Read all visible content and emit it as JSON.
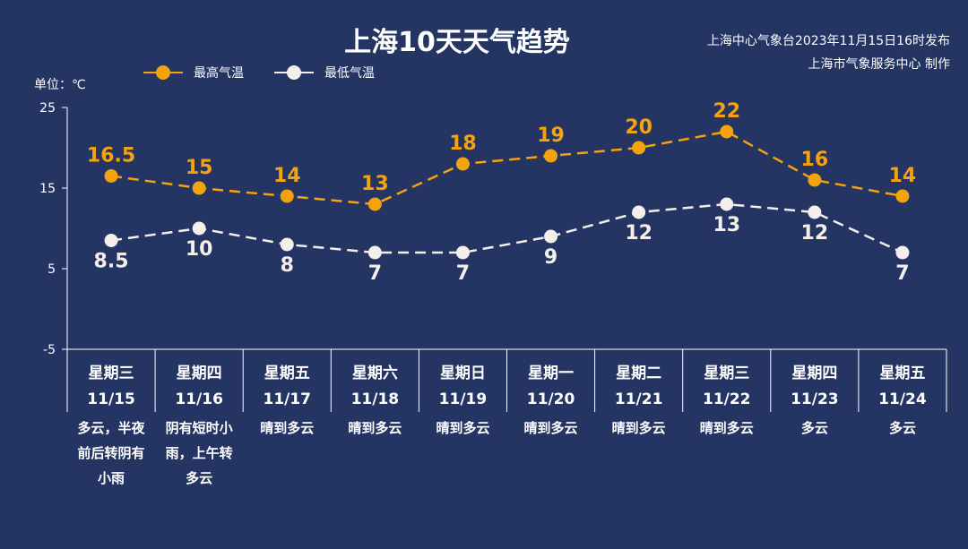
{
  "title": "上海10天天气趋势",
  "source": {
    "line1": "上海中心气象台2023年11月15日16时发布",
    "line2": "上海市气象服务中心 制作"
  },
  "unit_label": "单位：℃",
  "colors": {
    "background": "#243463",
    "high": "#F5A20F",
    "low": "#F4EFEA",
    "axis": "#FFFFFF"
  },
  "chart_data": {
    "type": "line",
    "ylim": [
      -5,
      25
    ],
    "yticks": [
      "25",
      "15",
      "5",
      "-5"
    ],
    "ytick_values": [
      25,
      15,
      5,
      -5
    ],
    "legend_position": "top-left",
    "grid": false,
    "categories": [
      {
        "weekday": "星期三",
        "date": "11/15",
        "weather": [
          "多云，半夜",
          "前后转阴有",
          "小雨"
        ]
      },
      {
        "weekday": "星期四",
        "date": "11/16",
        "weather": [
          "阴有短时小",
          "雨，上午转",
          "多云"
        ]
      },
      {
        "weekday": "星期五",
        "date": "11/17",
        "weather": [
          "晴到多云"
        ]
      },
      {
        "weekday": "星期六",
        "date": "11/18",
        "weather": [
          "晴到多云"
        ]
      },
      {
        "weekday": "星期日",
        "date": "11/19",
        "weather": [
          "晴到多云"
        ]
      },
      {
        "weekday": "星期一",
        "date": "11/20",
        "weather": [
          "晴到多云"
        ]
      },
      {
        "weekday": "星期二",
        "date": "11/21",
        "weather": [
          "晴到多云"
        ]
      },
      {
        "weekday": "星期三",
        "date": "11/22",
        "weather": [
          "晴到多云"
        ]
      },
      {
        "weekday": "星期四",
        "date": "11/23",
        "weather": [
          "多云"
        ]
      },
      {
        "weekday": "星期五",
        "date": "11/24",
        "weather": [
          "多云"
        ]
      }
    ],
    "series": [
      {
        "name": "最高气温",
        "values": [
          16.5,
          15,
          14,
          13,
          18,
          19,
          20,
          22,
          16,
          14
        ],
        "labels": [
          "16.5",
          "15",
          "14",
          "13",
          "18",
          "19",
          "20",
          "22",
          "16",
          "14"
        ]
      },
      {
        "name": "最低气温",
        "values": [
          8.5,
          10,
          8,
          7,
          7,
          9,
          12,
          13,
          12,
          7
        ],
        "labels": [
          "8.5",
          "10",
          "8",
          "7",
          "7",
          "9",
          "12",
          "13",
          "12",
          "7"
        ]
      }
    ]
  }
}
